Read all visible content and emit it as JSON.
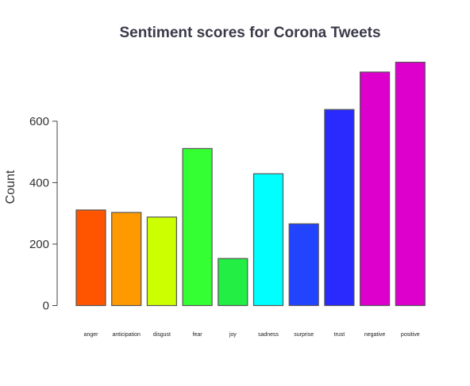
{
  "chart_data": {
    "type": "bar",
    "title": "Sentiment scores for Corona Tweets",
    "xlabel": "",
    "ylabel": "Count",
    "categories": [
      "anger",
      "anticipation",
      "disgust",
      "fear",
      "joy",
      "sadness",
      "surprise",
      "trust",
      "negative",
      "positive"
    ],
    "values": [
      311,
      303,
      288,
      511,
      153,
      429,
      266,
      638,
      760,
      792
    ],
    "colors": [
      "#ff5500",
      "#ff9900",
      "#ccff00",
      "#33ff33",
      "#22ee44",
      "#00ffff",
      "#2244ff",
      "#2a2aff",
      "#dd00cc",
      "#dd00cc"
    ],
    "yticks": [
      0,
      200,
      400,
      600
    ],
    "ylim": [
      0,
      792
    ],
    "grid": false,
    "legend": "none"
  }
}
